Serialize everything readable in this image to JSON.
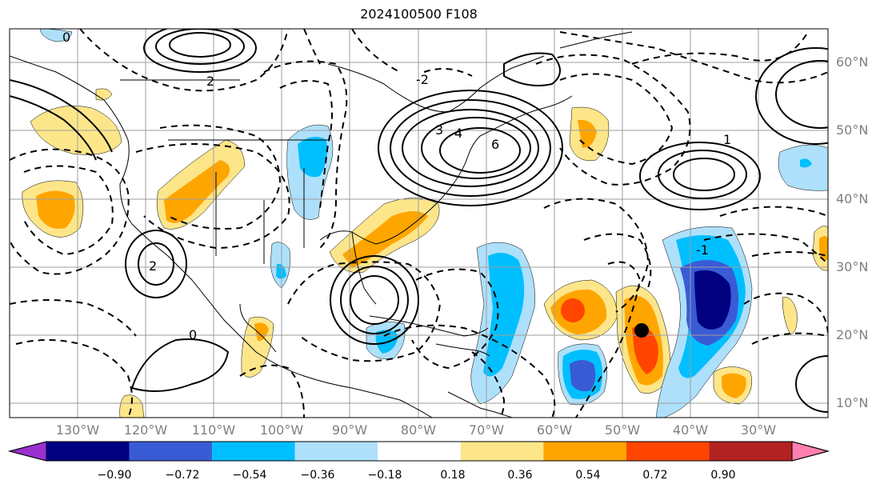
{
  "title": "2024100500 F108",
  "lat_labels": [
    "60°N",
    "50°N",
    "40°N",
    "30°N",
    "20°N",
    "10°N"
  ],
  "lon_labels": [
    "130°W",
    "120°W",
    "110°W",
    "100°W",
    "90°W",
    "80°W",
    "70°W",
    "60°W",
    "50°W",
    "40°W",
    "30°W"
  ],
  "colorbar": {
    "ticks": [
      "−0.90",
      "−0.72",
      "−0.54",
      "−0.36",
      "−0.18",
      "0.18",
      "0.36",
      "0.54",
      "0.72",
      "0.90"
    ],
    "colors": [
      "#9b30d0",
      "#000080",
      "#3a5bd6",
      "#00bfff",
      "#aee0fb",
      "#ffffff",
      "#fde68a",
      "#ffa500",
      "#ff4500",
      "#b22222",
      "#ff80b0"
    ]
  },
  "contour_labels": [
    "0",
    "2",
    "-2",
    "3",
    "4",
    "6",
    "1",
    "-1",
    "0",
    "2"
  ],
  "extent": {
    "lon_min": -137,
    "lon_max": -17,
    "lat_min": 7,
    "lat_max": 65
  }
}
